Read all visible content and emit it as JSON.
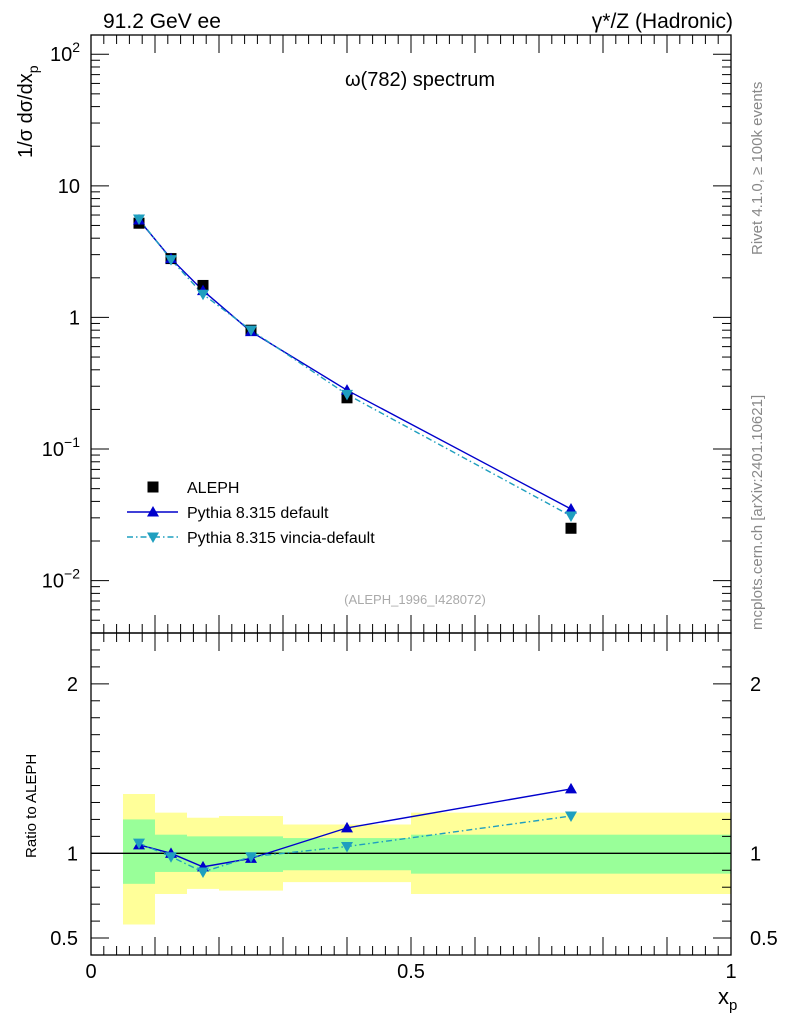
{
  "header": {
    "left": "91.2 GeV ee",
    "right": "γ*/Z (Hadronic)"
  },
  "side_labels": {
    "rivet": "Rivet 4.1.0, ≥ 100k events",
    "mcplots": "mcplots.cern.ch [arXiv:2401.10621]"
  },
  "chart_data": {
    "type": "line",
    "title": "ω(782) spectrum",
    "analysis_tag": "(ALEPH_1996_I428072)",
    "xlabel": "x",
    "xlabel_sub": "p",
    "ylabel": "1/σ  dσ/dx",
    "ylabel_sub": "p",
    "ratio_ylabel": "Ratio to ALEPH",
    "xlim": [
      0,
      1
    ],
    "ylim_log": [
      0.004,
      140
    ],
    "ratio_ylim": [
      0.4,
      2.3
    ],
    "x_ticks": [
      {
        "v": 0,
        "label": "0"
      },
      {
        "v": 0.5,
        "label": "0.5"
      },
      {
        "v": 1,
        "label": "1"
      }
    ],
    "y_ticks_main": [
      {
        "v": 0.01,
        "base": "10",
        "exp": "−2"
      },
      {
        "v": 0.1,
        "base": "10",
        "exp": "−1"
      },
      {
        "v": 1,
        "base": "1",
        "exp": ""
      },
      {
        "v": 10,
        "base": "10",
        "exp": ""
      },
      {
        "v": 100,
        "base": "10",
        "exp": "2"
      }
    ],
    "y_ticks_ratio": [
      {
        "v": 0.5,
        "label": "0.5"
      },
      {
        "v": 1,
        "label": "1"
      },
      {
        "v": 2,
        "label": "2"
      }
    ],
    "bins": [
      {
        "lo": 0.05,
        "hi": 0.1
      },
      {
        "lo": 0.1,
        "hi": 0.15
      },
      {
        "lo": 0.15,
        "hi": 0.2
      },
      {
        "lo": 0.2,
        "hi": 0.3
      },
      {
        "lo": 0.3,
        "hi": 0.5
      },
      {
        "lo": 0.5,
        "hi": 1.0
      }
    ],
    "x": [
      0.075,
      0.125,
      0.175,
      0.25,
      0.4,
      0.75
    ],
    "series": [
      {
        "name": "ALEPH",
        "marker": "square",
        "color": "#000000",
        "values": [
          5.2,
          2.8,
          1.75,
          0.8,
          0.245,
          0.025
        ]
      },
      {
        "name": "Pythia 8.315 default",
        "marker": "triangle-up",
        "color": "#0000cc",
        "dash": "",
        "values": [
          5.5,
          2.8,
          1.6,
          0.78,
          0.28,
          0.035
        ],
        "ratio": [
          1.05,
          1.0,
          0.92,
          0.97,
          1.15,
          1.38
        ]
      },
      {
        "name": "Pythia 8.315 vincia-default",
        "marker": "triangle-down",
        "color": "#1f9fbf",
        "dash": "6,3,1.5,3",
        "values": [
          5.6,
          2.75,
          1.5,
          0.8,
          0.26,
          0.031
        ],
        "ratio": [
          1.06,
          0.98,
          0.89,
          0.98,
          1.04,
          1.22
        ]
      }
    ],
    "bands": {
      "inner": [
        {
          "lo": 0.05,
          "hi": 0.1,
          "down": 0.82,
          "up": 1.2
        },
        {
          "lo": 0.1,
          "hi": 0.15,
          "down": 0.89,
          "up": 1.11
        },
        {
          "lo": 0.15,
          "hi": 0.2,
          "down": 0.89,
          "up": 1.1
        },
        {
          "lo": 0.2,
          "hi": 0.3,
          "down": 0.89,
          "up": 1.1
        },
        {
          "lo": 0.3,
          "hi": 0.5,
          "down": 0.9,
          "up": 1.09
        },
        {
          "lo": 0.5,
          "hi": 1.0,
          "down": 0.88,
          "up": 1.11
        }
      ],
      "outer": [
        {
          "lo": 0.05,
          "hi": 0.1,
          "down": 0.58,
          "up": 1.35
        },
        {
          "lo": 0.1,
          "hi": 0.15,
          "down": 0.76,
          "up": 1.24
        },
        {
          "lo": 0.15,
          "hi": 0.2,
          "down": 0.79,
          "up": 1.21
        },
        {
          "lo": 0.2,
          "hi": 0.3,
          "down": 0.78,
          "up": 1.22
        },
        {
          "lo": 0.3,
          "hi": 0.5,
          "down": 0.83,
          "up": 1.17
        },
        {
          "lo": 0.5,
          "hi": 1.0,
          "down": 0.76,
          "up": 1.24
        }
      ],
      "inner_color": "#99ff99",
      "outer_color": "#ffff99"
    }
  }
}
